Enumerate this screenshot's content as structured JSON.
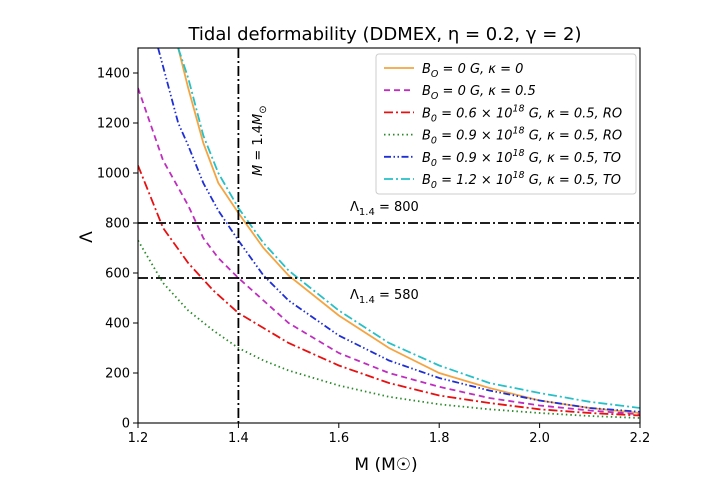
{
  "chart_data": {
    "type": "line",
    "title": "Tidal deformability (DDMEX, η = 0.2, γ = 2)",
    "xlabel": "M (M☉)",
    "ylabel": "Λ",
    "xlim": [
      1.2,
      2.2
    ],
    "ylim": [
      0,
      1500
    ],
    "xticks": [
      1.2,
      1.4,
      1.6,
      1.8,
      2.0,
      2.2
    ],
    "yticks": [
      0,
      200,
      400,
      600,
      800,
      1000,
      1200,
      1400
    ],
    "xtick_labels": [
      "1.2",
      "1.4",
      "1.6",
      "1.8",
      "2.0",
      "2.2"
    ],
    "ytick_labels": [
      "0",
      "200",
      "400",
      "600",
      "800",
      "1000",
      "1200",
      "1400"
    ],
    "legend_position": "top-right",
    "series": [
      {
        "name": "B_O = 0 G, κ = 0",
        "color": "#f5a442",
        "dash": "solid",
        "x": [
          1.28,
          1.3,
          1.33,
          1.36,
          1.4,
          1.45,
          1.5,
          1.6,
          1.7,
          1.8,
          1.9,
          2.0,
          2.1,
          2.2
        ],
        "y": [
          1500,
          1340,
          1120,
          960,
          840,
          700,
          590,
          430,
          300,
          200,
          140,
          90,
          60,
          40
        ]
      },
      {
        "name": "B_O = 0 G, κ = 0.5",
        "color": "#bf2ebf",
        "dash": "dashed",
        "x": [
          1.2,
          1.25,
          1.3,
          1.33,
          1.36,
          1.4,
          1.45,
          1.5,
          1.6,
          1.7,
          1.8,
          1.9,
          2.0,
          2.1,
          2.2
        ],
        "y": [
          1340,
          1050,
          870,
          740,
          660,
          580,
          490,
          400,
          280,
          200,
          145,
          100,
          70,
          50,
          35
        ]
      },
      {
        "name": "B_0 = 0.6 × 10^18 G, κ = 0.5, RO",
        "color": "#e81010",
        "dash": "dashdot",
        "x": [
          1.2,
          1.25,
          1.3,
          1.35,
          1.4,
          1.45,
          1.5,
          1.6,
          1.7,
          1.8,
          1.9,
          2.0,
          2.1,
          2.2
        ],
        "y": [
          1030,
          780,
          640,
          530,
          440,
          380,
          320,
          230,
          160,
          110,
          80,
          55,
          40,
          30
        ]
      },
      {
        "name": "B_0 = 0.9 × 10^18 G, κ = 0.5, RO",
        "color": "#2a8a2a",
        "dash": "dotted",
        "x": [
          1.2,
          1.25,
          1.3,
          1.35,
          1.4,
          1.45,
          1.5,
          1.6,
          1.7,
          1.8,
          1.9,
          2.0,
          2.1,
          2.2
        ],
        "y": [
          730,
          560,
          450,
          370,
          300,
          250,
          210,
          150,
          105,
          75,
          55,
          40,
          28,
          20
        ]
      },
      {
        "name": "B_0 = 0.9 × 10^18 G, κ = 0.5, TO",
        "color": "#1f2fd6",
        "dash": "dashdotdot",
        "x": [
          1.24,
          1.28,
          1.3,
          1.33,
          1.36,
          1.4,
          1.45,
          1.5,
          1.6,
          1.7,
          1.8,
          1.9,
          2.0,
          2.1,
          2.2
        ],
        "y": [
          1500,
          1200,
          1110,
          960,
          850,
          730,
          590,
          490,
          350,
          250,
          180,
          130,
          90,
          60,
          45
        ]
      },
      {
        "name": "B_0 = 1.2 × 10^18 G, κ = 0.5, TO",
        "color": "#26c0c7",
        "dash": "dashdot",
        "x": [
          1.28,
          1.3,
          1.33,
          1.36,
          1.4,
          1.45,
          1.5,
          1.6,
          1.7,
          1.8,
          1.9,
          2.0,
          2.1,
          2.2
        ],
        "y": [
          1500,
          1380,
          1150,
          1000,
          860,
          720,
          610,
          450,
          320,
          230,
          160,
          120,
          85,
          60
        ]
      }
    ],
    "reference_lines": [
      {
        "orientation": "horizontal",
        "value": 800,
        "label": "Λ1.4 = 800"
      },
      {
        "orientation": "horizontal",
        "value": 580,
        "label": "Λ1.4 = 580"
      },
      {
        "orientation": "vertical",
        "value": 1.4,
        "label": "M = 1.4M☉"
      }
    ]
  },
  "legend_labels": [
    [
      "B",
      "O",
      " = 0 G, κ = 0",
      ""
    ],
    [
      "B",
      "O",
      " = 0 G, κ = 0.5",
      ""
    ],
    [
      "B",
      "0",
      " = 0.6 × 10",
      "18",
      " G, κ = 0.5, RO"
    ],
    [
      "B",
      "0",
      " = 0.9 × 10",
      "18",
      " G, κ = 0.5, RO"
    ],
    [
      "B",
      "0",
      " = 0.9 × 10",
      "18",
      " G, κ = 0.5, TO"
    ],
    [
      "B",
      "0",
      " = 1.2 × 10",
      "18",
      " G, κ = 0.5, TO"
    ]
  ]
}
